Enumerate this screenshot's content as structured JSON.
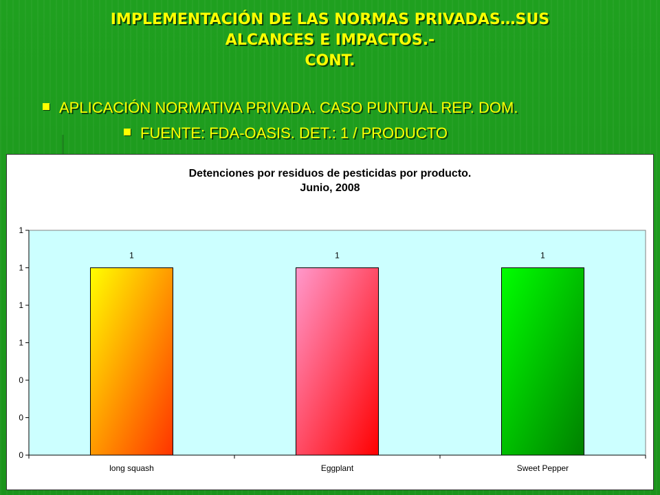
{
  "slide": {
    "title_lines": [
      "IMPLEMENTACIÓN DE LAS NORMAS PRIVADAS…SUS",
      "ALCANCES E IMPACTOS.-",
      "CONT."
    ],
    "bullets": [
      "APLICACIÓN NORMATIVA PRIVADA.  CASO PUNTUAL REP. DOM.",
      "FUENTE:  FDA-OASIS.  DET.:  1 / PRODUCTO"
    ],
    "bullet_icon": "square-bullet-icon",
    "colors": {
      "background": "#1f9a1f",
      "text": "#ffff00",
      "plot_area": "#ccffff"
    }
  },
  "chart_data": {
    "type": "bar",
    "title": "Detenciones por residuos de pesticidas por producto.",
    "subtitle": "Junio, 2008",
    "categories": [
      "long squash",
      "Eggplant",
      "Sweet Pepper"
    ],
    "values": [
      1,
      1,
      1
    ],
    "data_labels": [
      "1",
      "1",
      "1"
    ],
    "y_tick_labels": [
      "0",
      "0",
      "0",
      "1",
      "1",
      "1",
      "1"
    ],
    "ylim": [
      0,
      1.2
    ],
    "grid": false,
    "legend": "none",
    "bar_gradients": [
      {
        "from": "#ffff00",
        "to": "#ff3300"
      },
      {
        "from": "#ff99cc",
        "to": "#ff0000"
      },
      {
        "from": "#00ff00",
        "to": "#008000"
      }
    ]
  }
}
